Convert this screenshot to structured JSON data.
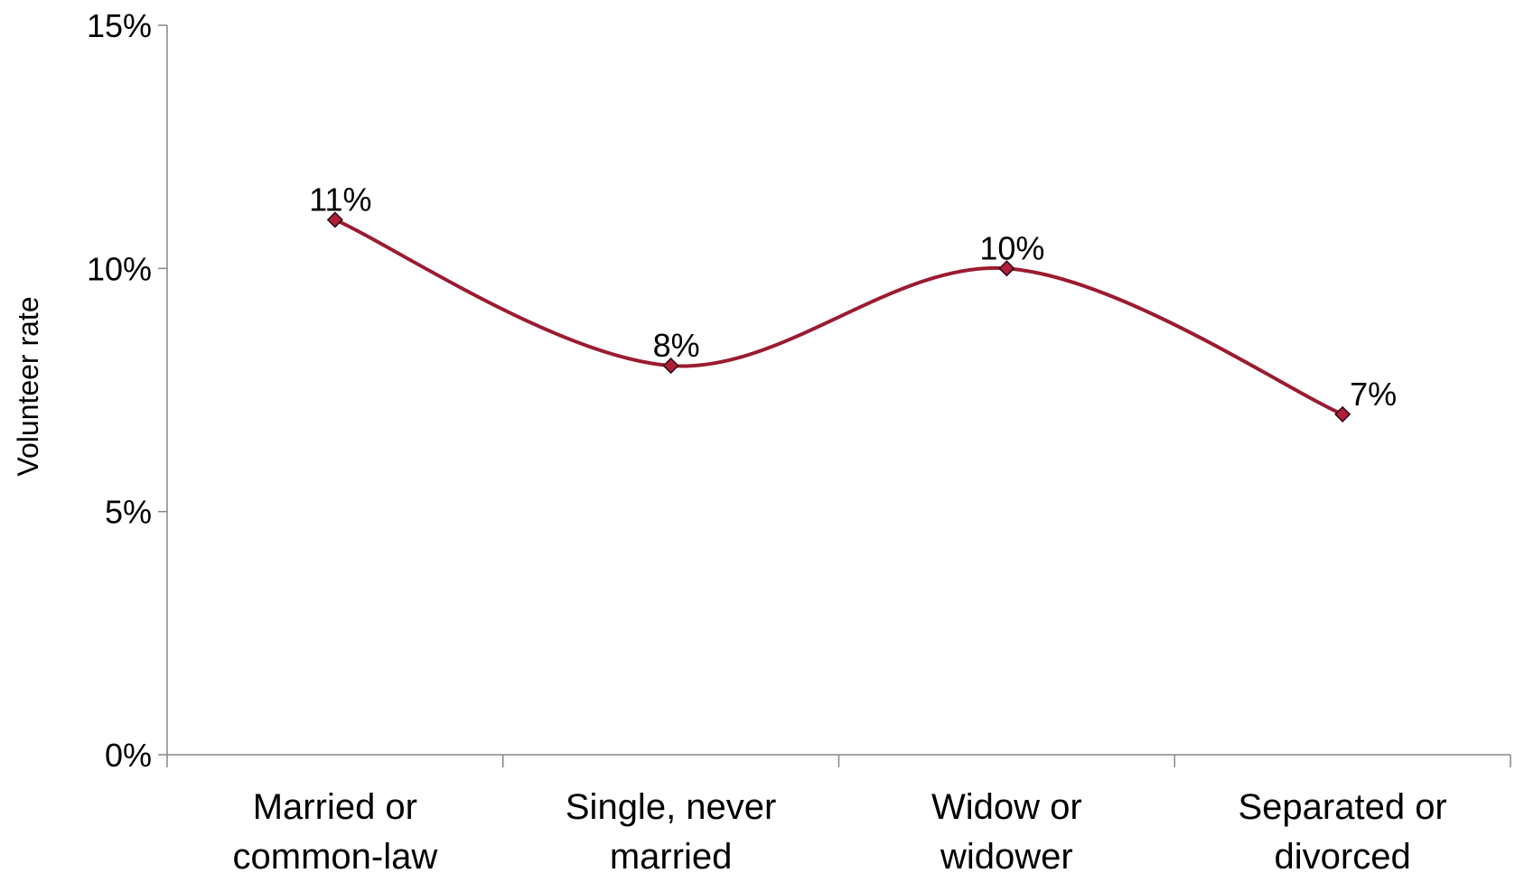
{
  "chart_data": {
    "type": "line",
    "title": "",
    "xlabel": "",
    "ylabel": "Volunteer rate",
    "categories": [
      [
        "Married or",
        "common-law"
      ],
      [
        "Single, never",
        "married"
      ],
      [
        "Widow or",
        "widower"
      ],
      [
        "Separated or",
        "divorced"
      ]
    ],
    "series": [
      {
        "values": [
          11,
          8,
          10,
          7
        ],
        "labels": [
          "11%",
          "8%",
          "10%",
          "7%"
        ],
        "color": "#9b1b30",
        "marker_color": "#b01e3a"
      }
    ],
    "ylim": [
      0,
      15
    ],
    "yticks": [
      0,
      5,
      10,
      15
    ],
    "ytick_labels": [
      "0%",
      "5%",
      "10%",
      "15%"
    ],
    "grid": false,
    "legend": "none",
    "smooth": true
  }
}
